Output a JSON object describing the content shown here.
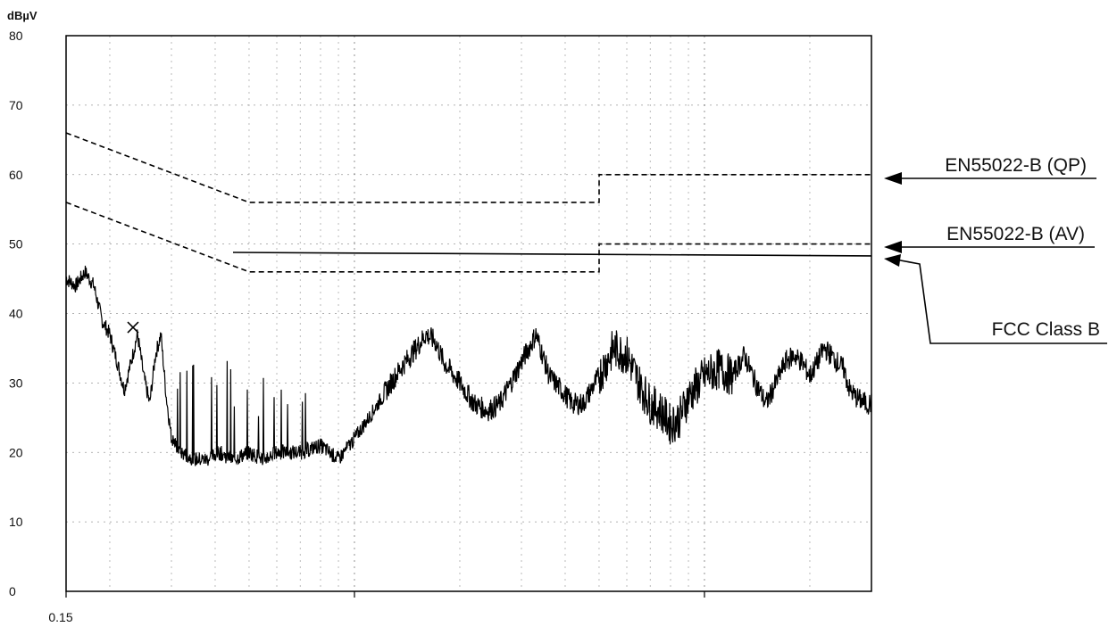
{
  "chart_data": {
    "type": "line",
    "title": "",
    "xlabel": "",
    "ylabel": "dBµV",
    "x_scale": "log",
    "xlim": [
      0.15,
      30
    ],
    "ylim": [
      0,
      80
    ],
    "x_tick_labels": [
      "0.15"
    ],
    "y_ticks": [
      80,
      70,
      60,
      50,
      40,
      30,
      20,
      10,
      0
    ],
    "grid": true,
    "limit_lines": [
      {
        "name": "EN55022-B (QP)",
        "style": "dashed",
        "points": [
          [
            0.15,
            66
          ],
          [
            0.5,
            56
          ],
          [
            5,
            56
          ],
          [
            5,
            60
          ],
          [
            30,
            60
          ]
        ]
      },
      {
        "name": "EN55022-B (AV)",
        "style": "dashed",
        "points": [
          [
            0.15,
            56
          ],
          [
            0.5,
            46
          ],
          [
            5,
            46
          ],
          [
            5,
            50
          ],
          [
            30,
            50
          ]
        ]
      },
      {
        "name": "FCC Class B",
        "style": "solid",
        "points": [
          [
            0.45,
            48.8
          ],
          [
            30,
            48.3
          ]
        ]
      }
    ],
    "series": [
      {
        "points": [
          [
            0.15,
            45
          ],
          [
            0.16,
            44
          ],
          [
            0.17,
            46
          ],
          [
            0.18,
            44
          ],
          [
            0.19,
            39
          ],
          [
            0.2,
            37
          ],
          [
            0.21,
            33
          ],
          [
            0.22,
            29
          ],
          [
            0.23,
            33
          ],
          [
            0.24,
            37
          ],
          [
            0.25,
            31
          ],
          [
            0.26,
            27
          ],
          [
            0.27,
            34
          ],
          [
            0.28,
            37
          ],
          [
            0.29,
            28
          ],
          [
            0.3,
            22
          ],
          [
            0.32,
            20
          ],
          [
            0.35,
            19
          ],
          [
            0.38,
            19
          ],
          [
            0.41,
            20
          ],
          [
            0.45,
            19
          ],
          [
            0.5,
            20
          ],
          [
            0.55,
            19
          ],
          [
            0.6,
            20
          ],
          [
            0.7,
            20
          ],
          [
            0.8,
            21
          ],
          [
            0.9,
            19
          ],
          [
            1.0,
            22
          ],
          [
            1.1,
            25
          ],
          [
            1.2,
            28
          ],
          [
            1.35,
            32
          ],
          [
            1.5,
            35
          ],
          [
            1.6,
            37
          ],
          [
            1.7,
            36
          ],
          [
            1.8,
            33
          ],
          [
            2.0,
            30
          ],
          [
            2.2,
            27
          ],
          [
            2.4,
            26
          ],
          [
            2.6,
            27
          ],
          [
            2.8,
            30
          ],
          [
            3.0,
            33
          ],
          [
            3.3,
            37
          ],
          [
            3.4,
            35
          ],
          [
            3.6,
            31
          ],
          [
            3.9,
            29
          ],
          [
            4.2,
            27
          ],
          [
            4.5,
            27
          ],
          [
            5.0,
            31
          ],
          [
            5.5,
            35
          ],
          [
            6.0,
            34
          ],
          [
            6.5,
            30
          ],
          [
            7.0,
            27
          ],
          [
            7.5,
            26
          ],
          [
            8.0,
            24
          ],
          [
            8.5,
            25
          ],
          [
            9.0,
            28
          ],
          [
            10,
            31
          ],
          [
            11,
            32
          ],
          [
            12,
            31
          ],
          [
            13,
            34
          ],
          [
            14,
            30
          ],
          [
            15,
            27
          ],
          [
            16,
            30
          ],
          [
            17,
            33
          ],
          [
            18,
            34
          ],
          [
            19,
            33
          ],
          [
            20,
            31
          ],
          [
            21,
            33
          ],
          [
            22,
            35
          ],
          [
            23,
            34
          ],
          [
            25,
            32
          ],
          [
            26,
            29
          ],
          [
            27,
            28
          ],
          [
            29,
            27
          ],
          [
            30,
            27
          ]
        ]
      }
    ],
    "marker": {
      "x": 0.233,
      "y": 38
    }
  }
}
